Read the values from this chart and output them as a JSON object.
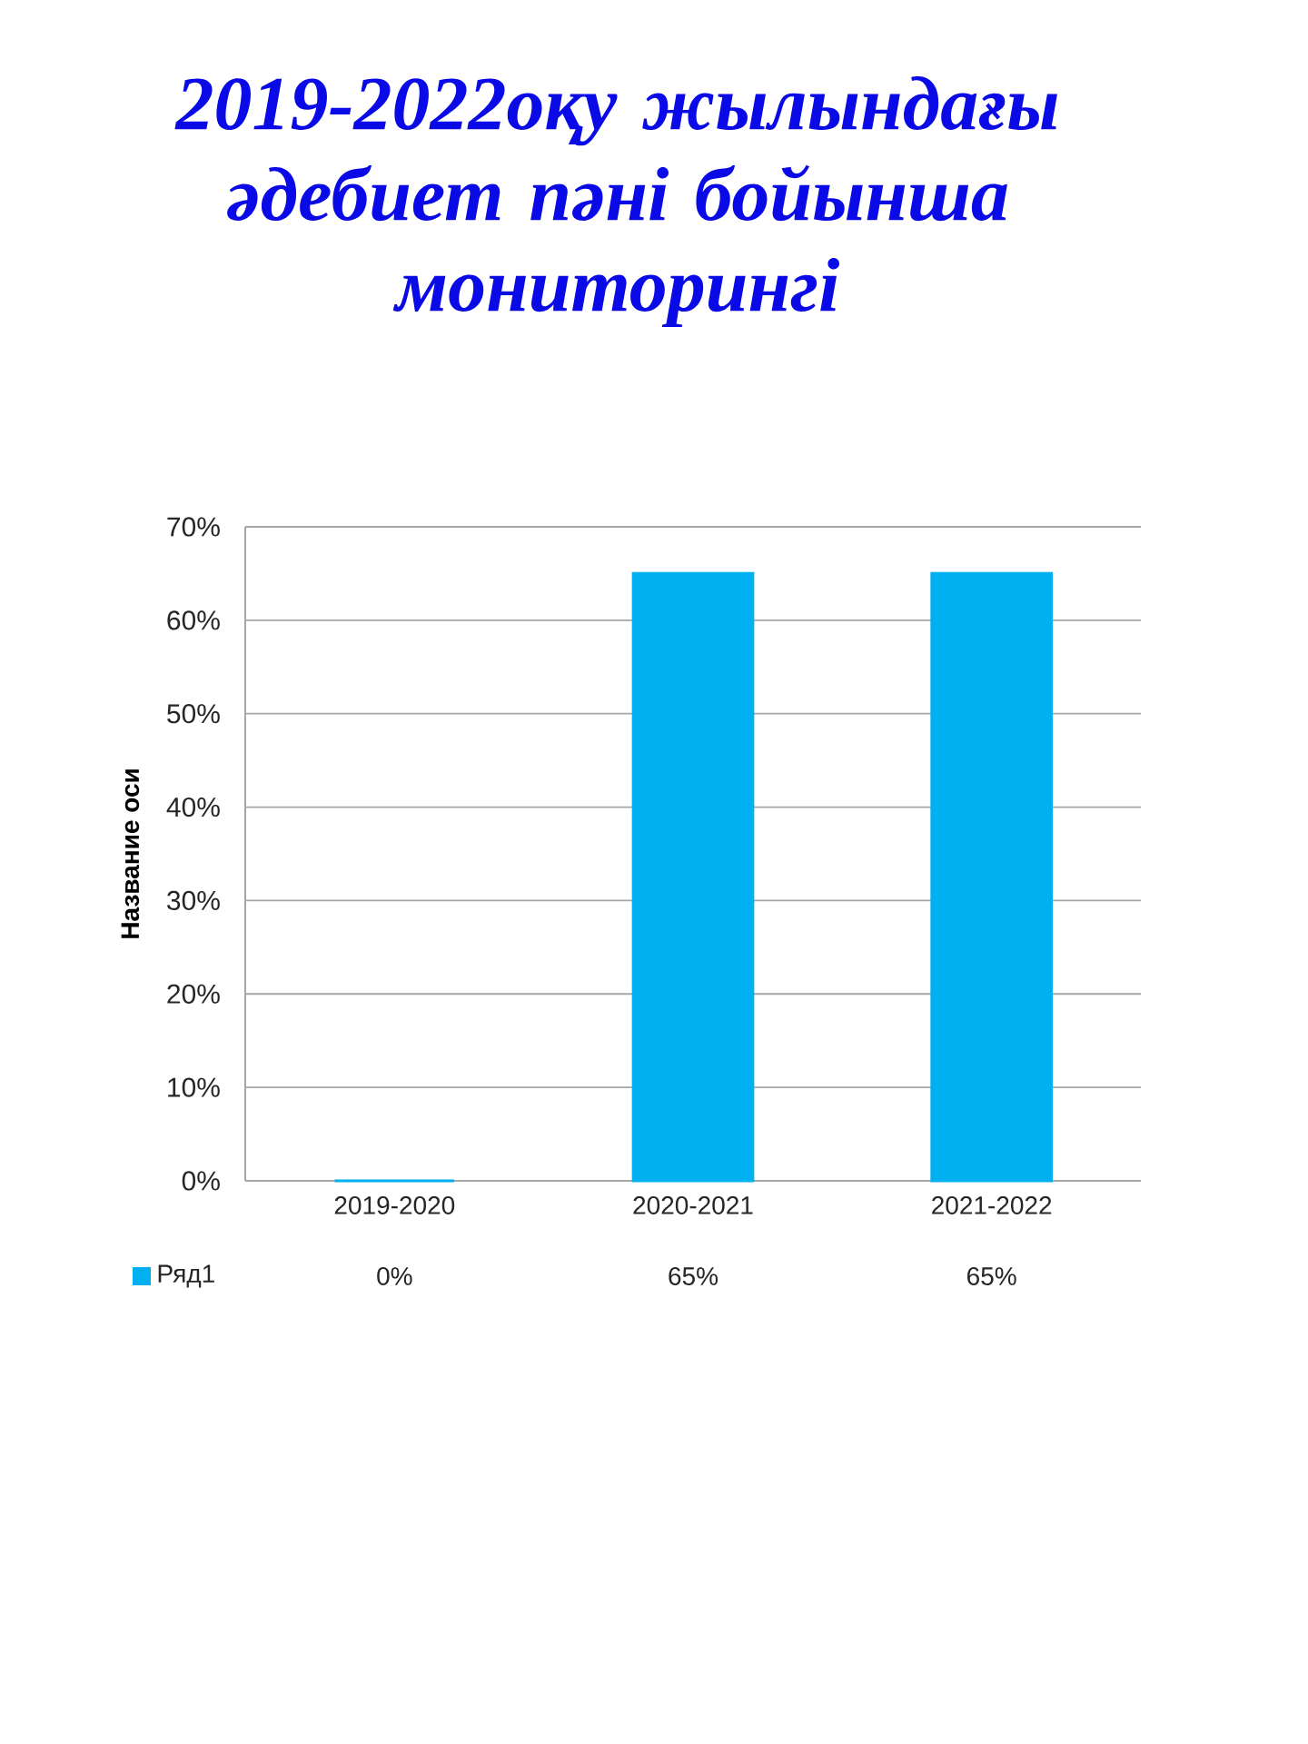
{
  "chart_data": {
    "type": "bar",
    "title": "2019-2022оқу жылындағы әдебиет пәні бойынша мониторингі",
    "ylabel": "Название оси",
    "categories": [
      "2019-2020",
      "2020-2021",
      "2021-2022"
    ],
    "series": [
      {
        "name": "Ряд1",
        "color": "#00b0f0",
        "values": [
          0,
          65,
          65
        ],
        "value_labels": [
          "0%",
          "65%",
          "65%"
        ]
      }
    ],
    "ylim": [
      0,
      70
    ],
    "yticks": [
      {
        "value": 0,
        "label": "0%"
      },
      {
        "value": 10,
        "label": "10%"
      },
      {
        "value": 20,
        "label": "20%"
      },
      {
        "value": 30,
        "label": "30%"
      },
      {
        "value": 40,
        "label": "40%"
      },
      {
        "value": 50,
        "label": "50%"
      },
      {
        "value": 60,
        "label": "60%"
      },
      {
        "value": 70,
        "label": "70%"
      }
    ],
    "grid": "y",
    "legend": "bottom"
  }
}
